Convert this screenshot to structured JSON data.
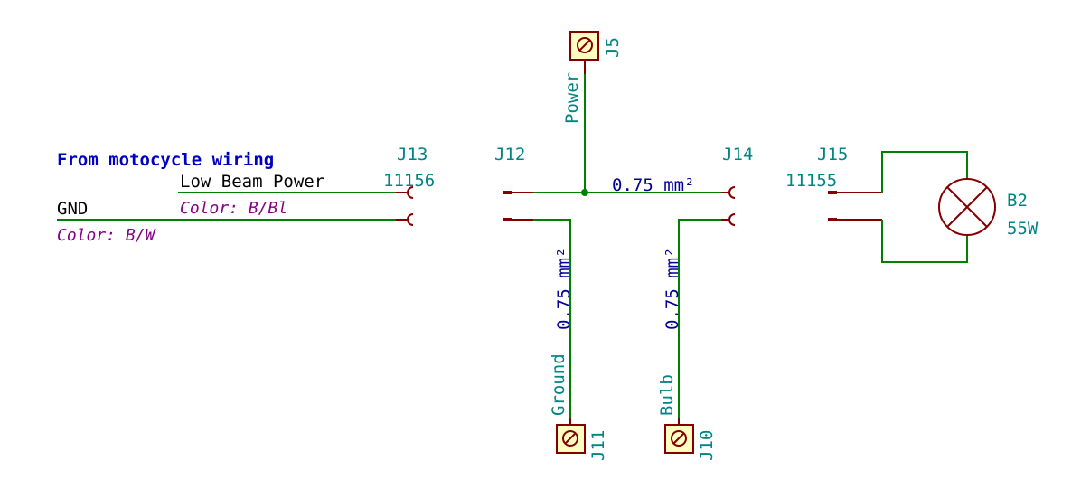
{
  "title": "From motocycle wiring",
  "net_labels": {
    "low_beam_power": "Low Beam Power",
    "gnd": "GND"
  },
  "notes": {
    "color_b_bl": "Color: B/Bl",
    "color_b_w": "Color: B/W"
  },
  "connectors": {
    "j13": {
      "ref": "J13",
      "value": "11156"
    },
    "j12": {
      "ref": "J12"
    },
    "j14": {
      "ref": "J14"
    },
    "j15": {
      "ref": "J15",
      "value": "11155"
    },
    "j5": {
      "ref": "J5",
      "label": "Power"
    },
    "j11": {
      "ref": "J11",
      "label": "Ground"
    },
    "j10": {
      "ref": "J10",
      "label": "Bulb"
    }
  },
  "wire_labels": {
    "horizontal": "0.75 mm²",
    "ground": "0.75 mm²",
    "bulb": "0.75 mm²"
  },
  "lamp": {
    "ref": "B2",
    "value": "55W"
  },
  "colors": {
    "wire": "#008000",
    "pin": "#840000",
    "reference": "#008484",
    "title": "#0000c2",
    "note": "#840084",
    "terminal_fill": "#ffffc2"
  }
}
